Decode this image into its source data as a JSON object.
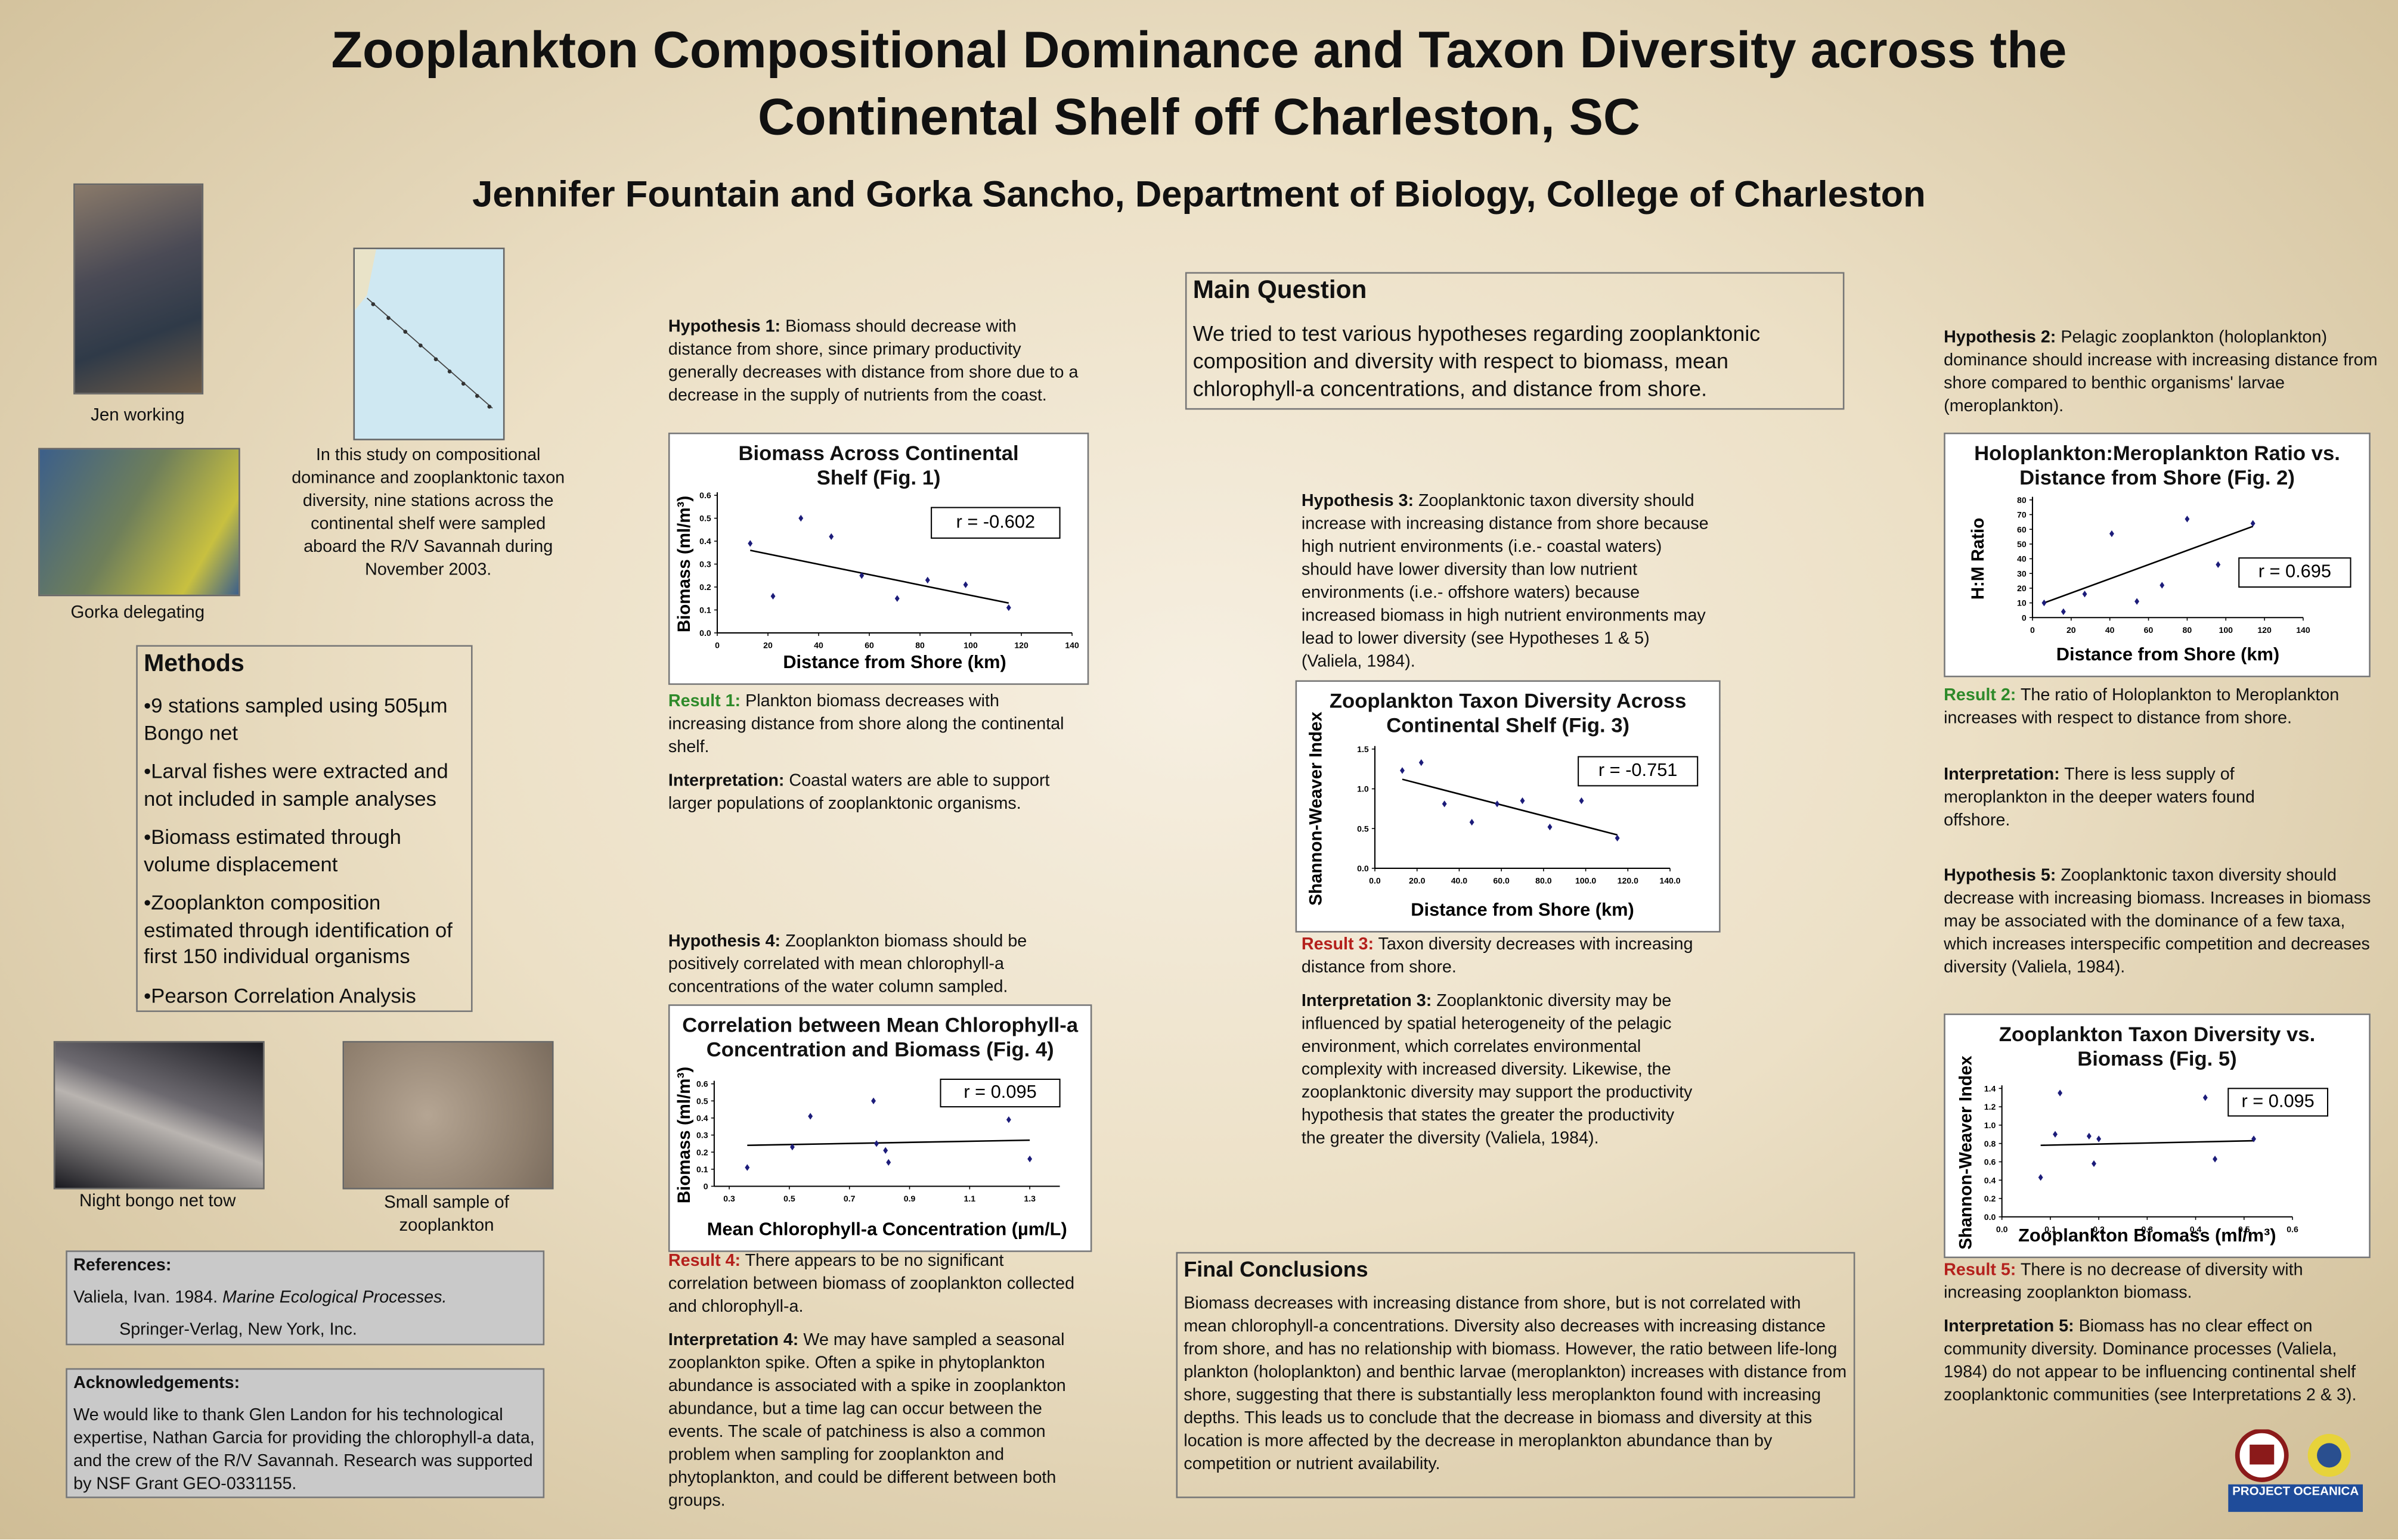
{
  "header": {
    "title": "Zooplankton Compositional Dominance and Taxon Diversity across the Continental Shelf off Charleston, SC",
    "authors": "Jennifer Fountain and Gorka Sancho, Department of Biology, College of Charleston"
  },
  "photos": {
    "jen": "Jen working",
    "gorka": "Gorka delegating",
    "bongo": "Night bongo net tow",
    "sample": "Small sample of zooplankton"
  },
  "intro": "In this study on compositional dominance and zooplanktonic taxon diversity, nine stations across the continental shelf were sampled aboard the R/V Savannah during November 2003.",
  "methods": {
    "title": "Methods",
    "items": [
      "•9 stations sampled using 505µm Bongo net",
      "•Larval fishes were extracted and not included in sample analyses",
      "•Biomass estimated through volume displacement",
      "•Zooplankton composition estimated through identification of first 150 individual organisms",
      "•Pearson Correlation Analysis"
    ]
  },
  "references": {
    "title": "References:",
    "author": "Valiela, Ivan. 1984.",
    "book": "Marine Ecological Processes.",
    "publisher": "Springer-Verlag,  New York, Inc."
  },
  "acknowledgements": {
    "title": "Acknowledgements:",
    "text": "We would like to thank Glen Landon for his technological expertise, Nathan Garcia for providing the chlorophyll-a data, and the crew of the R/V Savannah. Research was supported by NSF Grant GEO-0331155."
  },
  "main_question": {
    "title": "Main Question",
    "text": "We tried to test various hypotheses regarding zooplanktonic composition and diversity with respect to biomass, mean chlorophyll-a concentrations, and distance from shore."
  },
  "final_conclusions": {
    "title": "Final Conclusions",
    "text": "Biomass decreases with increasing distance from shore, but is not correlated with mean chlorophyll-a concentrations. Diversity also decreases with increasing distance from shore, and has no relationship with biomass. However, the ratio between life-long plankton (holoplankton) and benthic larvae (meroplankton) increases with distance from shore, suggesting that there is substantially less meroplankton found with increasing depths. This leads us to conclude that the decrease in biomass and diversity at this location is more affected by the decrease in meroplankton abundance than by competition or nutrient availability."
  },
  "paragraphs": {
    "hypothesis_1": {
      "label": "Hypothesis 1:",
      "text": "Biomass should decrease with distance from shore, since primary productivity generally decreases with distance from shore due to a decrease in the supply of nutrients from the coast."
    },
    "result_1": {
      "label": "Result 1:",
      "text": "Plankton biomass decreases with increasing distance from shore along the continental shelf."
    },
    "interpretation_1": {
      "label": "Interpretation:",
      "text": "Coastal waters are able to support larger populations of zooplanktonic organisms."
    },
    "hypothesis_4": {
      "label": "Hypothesis 4:",
      "text": "Zooplankton biomass should be positively correlated with mean chlorophyll-a concentrations of the water column sampled."
    },
    "result_4": {
      "label": "Result 4:",
      "text": "There appears to be no significant correlation between biomass of zooplankton collected and chlorophyll-a."
    },
    "interpretation_4": {
      "label": "Interpretation 4:",
      "text": "We may have sampled a seasonal zooplankton spike. Often a spike in phytoplankton abundance is associated with a spike in zooplankton abundance, but a time lag can occur between the events. The scale of patchiness is also a common problem when sampling for zooplankton and phytoplankton, and could be different between both groups."
    },
    "hypothesis_3": {
      "label": "Hypothesis 3:",
      "text": "Zooplanktonic taxon diversity should increase with increasing distance from shore because high nutrient environments (i.e.- coastal waters) should have lower diversity than low nutrient environments (i.e.- offshore waters) because increased biomass in high nutrient environments may lead to lower diversity (see Hypotheses 1 & 5) (Valiela, 1984)."
    },
    "result_3": {
      "label": "Result 3:",
      "text": "Taxon diversity decreases with increasing distance from shore."
    },
    "interpretation_3": {
      "label": "Interpretation 3:",
      "text": "Zooplanktonic diversity may be influenced by spatial heterogeneity of the pelagic environment, which correlates environmental complexity with increased diversity. Likewise, the zooplanktonic diversity may support the productivity hypothesis that states the greater the productivity the greater the diversity (Valiela, 1984)."
    },
    "hypothesis_2": {
      "label": "Hypothesis 2:",
      "text": "Pelagic zooplankton (holoplankton) dominance should increase with increasing distance from shore compared to benthic organisms' larvae (meroplankton)."
    },
    "result_2": {
      "label": "Result 2:",
      "text": "The ratio of Holoplankton to Meroplankton increases with respect to distance from shore."
    },
    "interpretation_2": {
      "label": "Interpretation:",
      "text": "There is less supply of meroplankton in the deeper waters found offshore."
    },
    "hypothesis_5": {
      "label": "Hypothesis 5:",
      "text": "Zooplanktonic taxon diversity should decrease with increasing biomass. Increases in biomass may be associated with the dominance of a few taxa, which increases interspecific competition and decreases diversity (Valiela, 1984)."
    },
    "result_5": {
      "label": "Result 5:",
      "text": "There is no decrease of diversity with increasing zooplankton biomass."
    },
    "interpretation_5": {
      "label": "Interpretation 5:",
      "text": "Biomass has no clear effect on community diversity. Dominance processes (Valiela, 1984) do not appear to be influencing continental shelf zooplanktonic communities (see Interpretations 2 & 3)."
    }
  },
  "logo": {
    "text": "PROJECT OCEANICA"
  },
  "chart_data": [
    {
      "type": "scatter",
      "title": "Biomass Across Continental Shelf (Fig. 1)",
      "x_label": "Distance from Shore (km)",
      "y_label": "Biomass (ml/m³)",
      "x": [
        13,
        22,
        33,
        45,
        57,
        71,
        83,
        98,
        115
      ],
      "values": [
        0.39,
        0.16,
        0.5,
        0.42,
        0.25,
        0.15,
        0.23,
        0.21,
        0.11
      ],
      "color": "#1c1c7a",
      "trendline": {
        "x": [
          13,
          115
        ],
        "y": [
          0.36,
          0.13
        ]
      },
      "annotation": "r = -0.602",
      "xlim": [
        0,
        140
      ],
      "xticks": [
        0,
        20,
        40,
        60,
        80,
        100,
        120,
        140
      ],
      "ylim": [
        0,
        0.6
      ],
      "yticks": [
        {
          "value": 0,
          "label": "0.0"
        },
        0.1,
        0.2,
        0.3,
        0.4,
        0.5,
        0.6
      ]
    },
    {
      "type": "scatter",
      "title": "Holoplankton:Meroplankton Ratio vs. Distance from Shore (Fig. 2)",
      "x_label": "Distance from Shore (km)",
      "y_label": "H:M Ratio",
      "x": [
        6,
        16,
        27,
        41,
        54,
        67,
        80,
        96,
        114
      ],
      "values": [
        10,
        4,
        16,
        57,
        11,
        22,
        67,
        36,
        64
      ],
      "color": "#1c1c7a",
      "trendline": {
        "x": [
          6,
          114
        ],
        "y": [
          10,
          62
        ]
      },
      "annotation": "r = 0.695",
      "xlim": [
        0,
        140
      ],
      "xticks": [
        0,
        20,
        40,
        60,
        80,
        100,
        120,
        140
      ],
      "ylim": [
        0,
        80
      ],
      "yticks": [
        0,
        10,
        20,
        30,
        40,
        50,
        60,
        70,
        80
      ]
    },
    {
      "type": "scatter",
      "title": "Zooplankton Taxon Diversity Across Continental Shelf (Fig. 3)",
      "x_label": "Distance from Shore (km)",
      "y_label": "Shannon-Weaver Index",
      "x": [
        13,
        22,
        33,
        46,
        58,
        70,
        83,
        98,
        115
      ],
      "values": [
        1.23,
        1.33,
        0.81,
        0.58,
        0.81,
        0.85,
        0.52,
        0.85,
        0.38
      ],
      "color": "#1c1c7a",
      "trendline": {
        "x": [
          13,
          115
        ],
        "y": [
          1.12,
          0.42
        ]
      },
      "annotation": "r = -0.751",
      "xlim": [
        0,
        140
      ],
      "xticks": [
        {
          "value": 0,
          "label": "0.0"
        },
        {
          "value": 20,
          "label": "20.0"
        },
        {
          "value": 40,
          "label": "40.0"
        },
        {
          "value": 60,
          "label": "60.0"
        },
        {
          "value": 80,
          "label": "80.0"
        },
        {
          "value": 100,
          "label": "100.0"
        },
        {
          "value": 120,
          "label": "120.0"
        },
        {
          "value": 140,
          "label": "140.0"
        }
      ],
      "ylim": [
        0,
        1.5
      ],
      "yticks": [
        {
          "value": 0,
          "label": "0.0"
        },
        0.5,
        {
          "value": 1,
          "label": "1.0"
        },
        1.5
      ]
    },
    {
      "type": "scatter",
      "title": "Correlation between Mean Chlorophyll-a Concentration and Biomass (Fig. 4)",
      "x_label": "Mean Chlorophyll-a Concentration (µm/L)",
      "y_label": "Biomass (ml/m³)",
      "x": [
        0.36,
        0.51,
        0.57,
        0.78,
        0.79,
        0.82,
        0.83,
        1.23,
        1.3
      ],
      "values": [
        0.11,
        0.23,
        0.41,
        0.5,
        0.25,
        0.21,
        0.14,
        0.39,
        0.16
      ],
      "color": "#1c1c7a",
      "trendline": {
        "x": [
          0.36,
          1.3
        ],
        "y": [
          0.24,
          0.27
        ]
      },
      "annotation": "r = 0.095",
      "xlim": [
        0.25,
        1.4
      ],
      "xticks": [
        0.3,
        0.5,
        0.7,
        0.9,
        1.1,
        1.3
      ],
      "ylim": [
        0,
        0.6
      ],
      "yticks": [
        0,
        0.1,
        0.2,
        0.3,
        0.4,
        0.5,
        0.6
      ]
    },
    {
      "type": "scatter",
      "title": "Zooplankton Taxon Diversity vs. Biomass (Fig. 5)",
      "x_label": "Zooplankton Biomass (ml/m³)",
      "y_label": "Shannon-Weaver Index",
      "x": [
        0.08,
        0.11,
        0.12,
        0.18,
        0.19,
        0.2,
        0.42,
        0.44,
        0.52
      ],
      "values": [
        0.43,
        0.9,
        1.35,
        0.88,
        0.58,
        0.85,
        1.3,
        0.63,
        0.85
      ],
      "color": "#1c1c7a",
      "trendline": {
        "x": [
          0.08,
          0.52
        ],
        "y": [
          0.78,
          0.83
        ]
      },
      "annotation": "r = 0.095",
      "xlim": [
        0,
        0.6
      ],
      "xticks": [
        {
          "value": 0,
          "label": "0.0"
        },
        0.1,
        0.2,
        0.3,
        0.4,
        0.5,
        0.6
      ],
      "ylim": [
        0,
        1.4
      ],
      "yticks": [
        {
          "value": 0,
          "label": "0.0"
        },
        0.2,
        0.4,
        0.6,
        0.8,
        {
          "value": 1,
          "label": "1.0"
        },
        1.2,
        1.4
      ]
    }
  ]
}
